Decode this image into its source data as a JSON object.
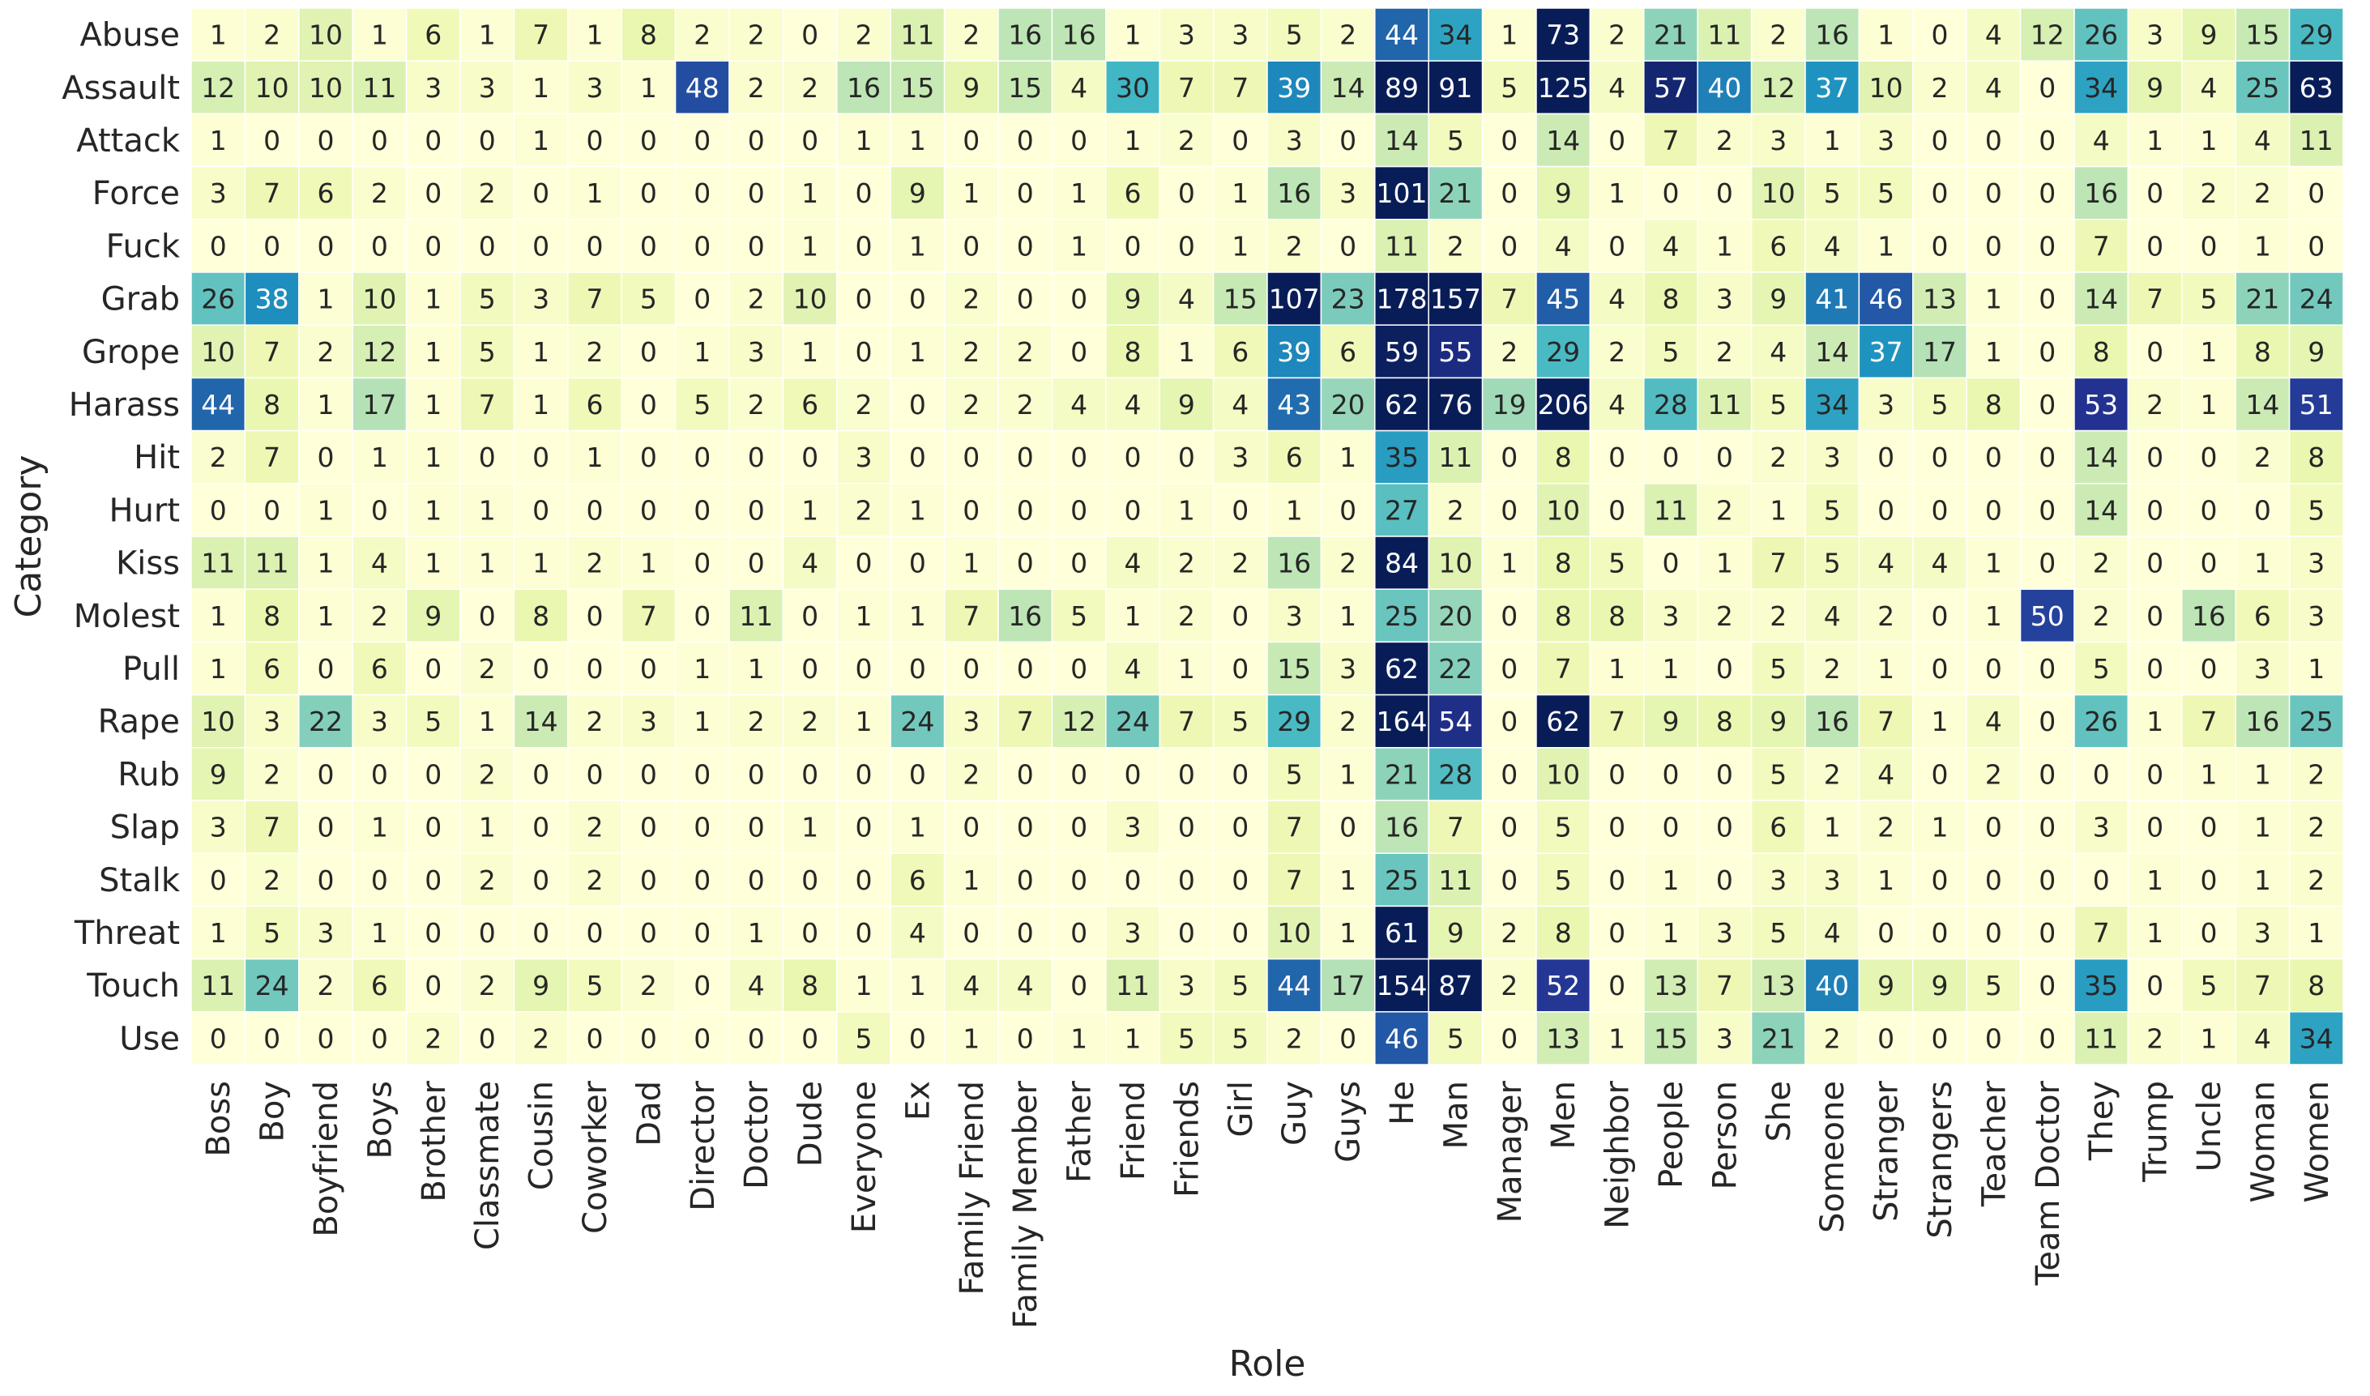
{
  "chart_data": {
    "type": "heatmap",
    "title": "",
    "xlabel": "Role",
    "ylabel": "Category",
    "colormap": "YlGnBu",
    "color_range": [
      0,
      60
    ],
    "annotated": true,
    "colorbar": false,
    "colormap_stops": [
      "#ffffd9",
      "#edf8b1",
      "#c7e9b4",
      "#7fcdbb",
      "#41b6c4",
      "#1d91c0",
      "#225ea8",
      "#253494",
      "#081d58"
    ],
    "x_categories": [
      "Boss",
      "Boy",
      "Boyfriend",
      "Boys",
      "Brother",
      "Classmate",
      "Cousin",
      "Coworker",
      "Dad",
      "Director",
      "Doctor",
      "Dude",
      "Everyone",
      "Ex",
      "Family Friend",
      "Family Member",
      "Father",
      "Friend",
      "Friends",
      "Girl",
      "Guy",
      "Guys",
      "He",
      "Man",
      "Manager",
      "Men",
      "Neighbor",
      "People",
      "Person",
      "She",
      "Someone",
      "Stranger",
      "Strangers",
      "Teacher",
      "Team Doctor",
      "They",
      "Trump",
      "Uncle",
      "Woman",
      "Women"
    ],
    "y_categories": [
      "Abuse",
      "Assault",
      "Attack",
      "Force",
      "Fuck",
      "Grab",
      "Grope",
      "Harass",
      "Hit",
      "Hurt",
      "Kiss",
      "Molest",
      "Pull",
      "Rape",
      "Rub",
      "Slap",
      "Stalk",
      "Threat",
      "Touch",
      "Use"
    ],
    "values": [
      [
        1,
        2,
        10,
        1,
        6,
        1,
        7,
        1,
        8,
        2,
        2,
        0,
        2,
        11,
        2,
        16,
        16,
        1,
        3,
        3,
        5,
        2,
        44,
        34,
        1,
        73,
        2,
        21,
        11,
        2,
        16,
        1,
        0,
        4,
        12,
        26,
        3,
        9,
        15,
        29
      ],
      [
        12,
        10,
        10,
        11,
        3,
        3,
        1,
        3,
        1,
        48,
        2,
        2,
        16,
        15,
        9,
        15,
        4,
        30,
        7,
        7,
        39,
        14,
        89,
        91,
        5,
        125,
        4,
        57,
        40,
        12,
        37,
        10,
        2,
        4,
        0,
        34,
        9,
        4,
        25,
        63
      ],
      [
        1,
        0,
        0,
        0,
        0,
        0,
        1,
        0,
        0,
        0,
        0,
        0,
        1,
        1,
        0,
        0,
        0,
        1,
        2,
        0,
        3,
        0,
        14,
        5,
        0,
        14,
        0,
        7,
        2,
        3,
        1,
        3,
        0,
        0,
        0,
        4,
        1,
        1,
        4,
        11
      ],
      [
        3,
        7,
        6,
        2,
        0,
        2,
        0,
        1,
        0,
        0,
        0,
        1,
        0,
        9,
        1,
        0,
        1,
        6,
        0,
        1,
        16,
        3,
        101,
        21,
        0,
        9,
        1,
        0,
        0,
        10,
        5,
        5,
        0,
        0,
        0,
        16,
        0,
        2,
        2,
        0
      ],
      [
        0,
        0,
        0,
        0,
        0,
        0,
        0,
        0,
        0,
        0,
        0,
        1,
        0,
        1,
        0,
        0,
        1,
        0,
        0,
        1,
        2,
        0,
        11,
        2,
        0,
        4,
        0,
        4,
        1,
        6,
        4,
        1,
        0,
        0,
        0,
        7,
        0,
        0,
        1,
        0
      ],
      [
        26,
        38,
        1,
        10,
        1,
        5,
        3,
        7,
        5,
        0,
        2,
        10,
        0,
        0,
        2,
        0,
        0,
        9,
        4,
        15,
        107,
        23,
        178,
        157,
        7,
        45,
        4,
        8,
        3,
        9,
        41,
        46,
        13,
        1,
        0,
        14,
        7,
        5,
        21,
        24
      ],
      [
        10,
        7,
        2,
        12,
        1,
        5,
        1,
        2,
        0,
        1,
        3,
        1,
        0,
        1,
        2,
        2,
        0,
        8,
        1,
        6,
        39,
        6,
        59,
        55,
        2,
        29,
        2,
        5,
        2,
        4,
        14,
        37,
        17,
        1,
        0,
        8,
        0,
        1,
        8,
        9
      ],
      [
        44,
        8,
        1,
        17,
        1,
        7,
        1,
        6,
        0,
        5,
        2,
        6,
        2,
        0,
        2,
        2,
        4,
        4,
        9,
        4,
        43,
        20,
        62,
        76,
        19,
        206,
        4,
        28,
        11,
        5,
        34,
        3,
        5,
        8,
        0,
        53,
        2,
        1,
        14,
        51
      ],
      [
        2,
        7,
        0,
        1,
        1,
        0,
        0,
        1,
        0,
        0,
        0,
        0,
        3,
        0,
        0,
        0,
        0,
        0,
        0,
        3,
        6,
        1,
        35,
        11,
        0,
        8,
        0,
        0,
        0,
        2,
        3,
        0,
        0,
        0,
        0,
        14,
        0,
        0,
        2,
        8
      ],
      [
        0,
        0,
        1,
        0,
        1,
        1,
        0,
        0,
        0,
        0,
        0,
        1,
        2,
        1,
        0,
        0,
        0,
        0,
        1,
        0,
        1,
        0,
        27,
        2,
        0,
        10,
        0,
        11,
        2,
        1,
        5,
        0,
        0,
        0,
        0,
        14,
        0,
        0,
        0,
        5
      ],
      [
        11,
        11,
        1,
        4,
        1,
        1,
        1,
        2,
        1,
        0,
        0,
        4,
        0,
        0,
        1,
        0,
        0,
        4,
        2,
        2,
        16,
        2,
        84,
        10,
        1,
        8,
        5,
        0,
        1,
        7,
        5,
        4,
        4,
        1,
        0,
        2,
        0,
        0,
        1,
        3
      ],
      [
        1,
        8,
        1,
        2,
        9,
        0,
        8,
        0,
        7,
        0,
        11,
        0,
        1,
        1,
        7,
        16,
        5,
        1,
        2,
        0,
        3,
        1,
        25,
        20,
        0,
        8,
        8,
        3,
        2,
        2,
        4,
        2,
        0,
        1,
        50,
        2,
        0,
        16,
        6,
        3
      ],
      [
        1,
        6,
        0,
        6,
        0,
        2,
        0,
        0,
        0,
        1,
        1,
        0,
        0,
        0,
        0,
        0,
        0,
        4,
        1,
        0,
        15,
        3,
        62,
        22,
        0,
        7,
        1,
        1,
        0,
        5,
        2,
        1,
        0,
        0,
        0,
        5,
        0,
        0,
        3,
        1
      ],
      [
        10,
        3,
        22,
        3,
        5,
        1,
        14,
        2,
        3,
        1,
        2,
        2,
        1,
        24,
        3,
        7,
        12,
        24,
        7,
        5,
        29,
        2,
        164,
        54,
        0,
        62,
        7,
        9,
        8,
        9,
        16,
        7,
        1,
        4,
        0,
        26,
        1,
        7,
        16,
        25
      ],
      [
        9,
        2,
        0,
        0,
        0,
        2,
        0,
        0,
        0,
        0,
        0,
        0,
        0,
        0,
        2,
        0,
        0,
        0,
        0,
        0,
        5,
        1,
        21,
        28,
        0,
        10,
        0,
        0,
        0,
        5,
        2,
        4,
        0,
        2,
        0,
        0,
        0,
        1,
        1,
        2
      ],
      [
        3,
        7,
        0,
        1,
        0,
        1,
        0,
        2,
        0,
        0,
        0,
        1,
        0,
        1,
        0,
        0,
        0,
        3,
        0,
        0,
        7,
        0,
        16,
        7,
        0,
        5,
        0,
        0,
        0,
        6,
        1,
        2,
        1,
        0,
        0,
        3,
        0,
        0,
        1,
        2
      ],
      [
        0,
        2,
        0,
        0,
        0,
        2,
        0,
        2,
        0,
        0,
        0,
        0,
        0,
        6,
        1,
        0,
        0,
        0,
        0,
        0,
        7,
        1,
        25,
        11,
        0,
        5,
        0,
        1,
        0,
        3,
        3,
        1,
        0,
        0,
        0,
        0,
        1,
        0,
        1,
        2
      ],
      [
        1,
        5,
        3,
        1,
        0,
        0,
        0,
        0,
        0,
        0,
        1,
        0,
        0,
        4,
        0,
        0,
        0,
        3,
        0,
        0,
        10,
        1,
        61,
        9,
        2,
        8,
        0,
        1,
        3,
        5,
        4,
        0,
        0,
        0,
        0,
        7,
        1,
        0,
        3,
        1
      ],
      [
        11,
        24,
        2,
        6,
        0,
        2,
        9,
        5,
        2,
        0,
        4,
        8,
        1,
        1,
        4,
        4,
        0,
        11,
        3,
        5,
        44,
        17,
        154,
        87,
        2,
        52,
        0,
        13,
        7,
        13,
        40,
        9,
        9,
        5,
        0,
        35,
        0,
        5,
        7,
        8
      ],
      [
        0,
        0,
        0,
        0,
        2,
        0,
        2,
        0,
        0,
        0,
        0,
        0,
        5,
        0,
        1,
        0,
        1,
        1,
        5,
        5,
        2,
        0,
        46,
        5,
        0,
        13,
        1,
        15,
        3,
        21,
        2,
        0,
        0,
        0,
        0,
        11,
        2,
        1,
        4,
        34
      ]
    ]
  }
}
